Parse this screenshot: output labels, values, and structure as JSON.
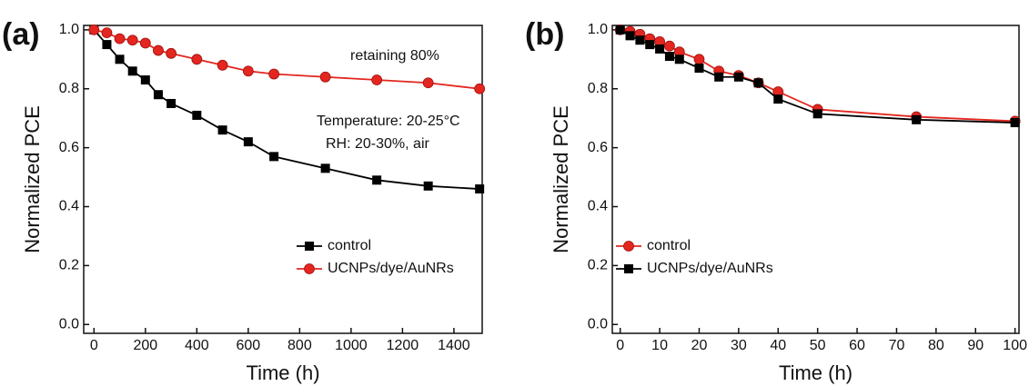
{
  "chart_data": [
    {
      "type": "line",
      "panel_label": "(a)",
      "x_label": "Time (h)",
      "y_label": "Normalized PCE",
      "xlim": [
        -40,
        1510
      ],
      "xticks": [
        0,
        200,
        400,
        600,
        800,
        1000,
        1200,
        1400
      ],
      "ylim": [
        -0.03,
        1.015
      ],
      "yticks": [
        {
          "value": 0,
          "label": "0.0"
        },
        0.2,
        0.4,
        0.6,
        0.8,
        {
          "value": 1,
          "label": "1.0"
        }
      ],
      "legend_position": "lower right",
      "annotations": [
        "retaining 80%",
        "Temperature: 20-25°C",
        "RH: 20-30%, air"
      ],
      "series": [
        {
          "name": "control",
          "color": "#000000",
          "marker": "square",
          "x": [
            0,
            50,
            100,
            150,
            200,
            250,
            300,
            400,
            500,
            600,
            700,
            900,
            1100,
            1300,
            1500
          ],
          "values": [
            1.0,
            0.95,
            0.9,
            0.86,
            0.83,
            0.78,
            0.75,
            0.71,
            0.66,
            0.62,
            0.57,
            0.53,
            0.49,
            0.47,
            0.46
          ]
        },
        {
          "name": "UCNPs/dye/AuNRs",
          "color": "#e3261f",
          "marker": "circle",
          "x": [
            0,
            50,
            100,
            150,
            200,
            250,
            300,
            400,
            500,
            600,
            700,
            900,
            1100,
            1300,
            1500
          ],
          "values": [
            1.0,
            0.99,
            0.97,
            0.965,
            0.955,
            0.93,
            0.92,
            0.9,
            0.88,
            0.86,
            0.85,
            0.84,
            0.83,
            0.82,
            0.8
          ]
        }
      ]
    },
    {
      "type": "line",
      "panel_label": "(b)",
      "x_label": "Time (h)",
      "y_label": "Normalized PCE",
      "xlim": [
        -2,
        101
      ],
      "xticks": [
        0,
        10,
        20,
        30,
        40,
        50,
        60,
        70,
        80,
        90,
        100
      ],
      "ylim": [
        -0.03,
        1.015
      ],
      "yticks": [
        {
          "value": 0,
          "label": "0.0"
        },
        0.2,
        0.4,
        0.6,
        0.8,
        {
          "value": 1,
          "label": "1.0"
        }
      ],
      "legend_position": "lower left",
      "series": [
        {
          "name": "control",
          "color": "#e3261f",
          "marker": "circle",
          "x": [
            0,
            2.5,
            5,
            7.5,
            10,
            12.5,
            15,
            20,
            25,
            30,
            35,
            40,
            50,
            75,
            100
          ],
          "values": [
            1.0,
            0.995,
            0.985,
            0.97,
            0.96,
            0.945,
            0.925,
            0.9,
            0.86,
            0.845,
            0.82,
            0.79,
            0.73,
            0.705,
            0.69
          ]
        },
        {
          "name": "UCNPs/dye/AuNRs",
          "color": "#000000",
          "marker": "square",
          "x": [
            0,
            2.5,
            5,
            7.5,
            10,
            12.5,
            15,
            20,
            25,
            30,
            35,
            40,
            50,
            75,
            100
          ],
          "values": [
            1.0,
            0.98,
            0.965,
            0.95,
            0.935,
            0.91,
            0.9,
            0.87,
            0.84,
            0.84,
            0.82,
            0.765,
            0.715,
            0.695,
            0.685
          ]
        }
      ]
    }
  ]
}
